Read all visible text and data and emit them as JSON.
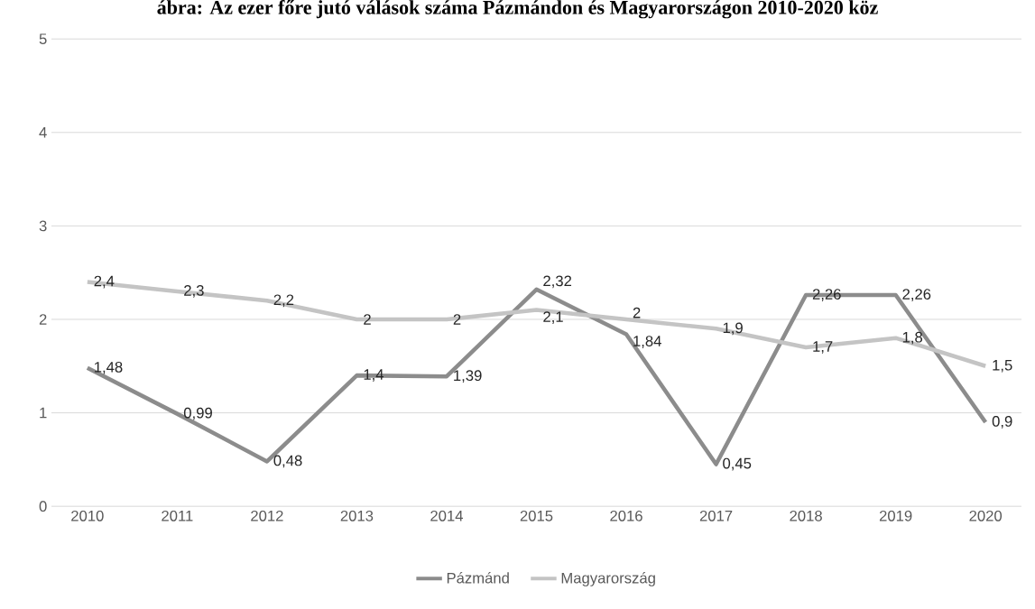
{
  "chart_data": {
    "type": "line",
    "title": "ábra: Az ezer főre jutó válások száma Pázmándon és Magyarországon 2010-2020 köz",
    "categories": [
      "2010",
      "2011",
      "2012",
      "2013",
      "2014",
      "2015",
      "2016",
      "2017",
      "2018",
      "2019",
      "2020"
    ],
    "series": [
      {
        "name": "Pázmánd",
        "color": "#8c8c8c",
        "values": [
          1.48,
          0.99,
          0.48,
          1.4,
          1.39,
          2.32,
          1.84,
          0.45,
          2.26,
          2.26,
          0.9
        ],
        "value_labels": [
          "1,48",
          "0,99",
          "0,48",
          "1,4",
          "1,39",
          "2,32",
          "1,84",
          "0,45",
          "2,26",
          "2,26",
          "0,9"
        ]
      },
      {
        "name": "Magyarország",
        "color": "#c4c4c4",
        "values": [
          2.4,
          2.3,
          2.2,
          2,
          2,
          2.1,
          2,
          1.9,
          1.7,
          1.8,
          1.5
        ],
        "value_labels": [
          "2,4",
          "2,3",
          "2,2",
          "2",
          "2",
          "2,1",
          "2",
          "1,9",
          "1,7",
          "1,8",
          "1,5"
        ]
      }
    ],
    "ylim": [
      0,
      5
    ],
    "yticks": [
      0,
      1,
      2,
      3,
      4,
      5
    ],
    "grid": "y",
    "legend": "bottom",
    "marker": "none",
    "line_style": "solid"
  }
}
